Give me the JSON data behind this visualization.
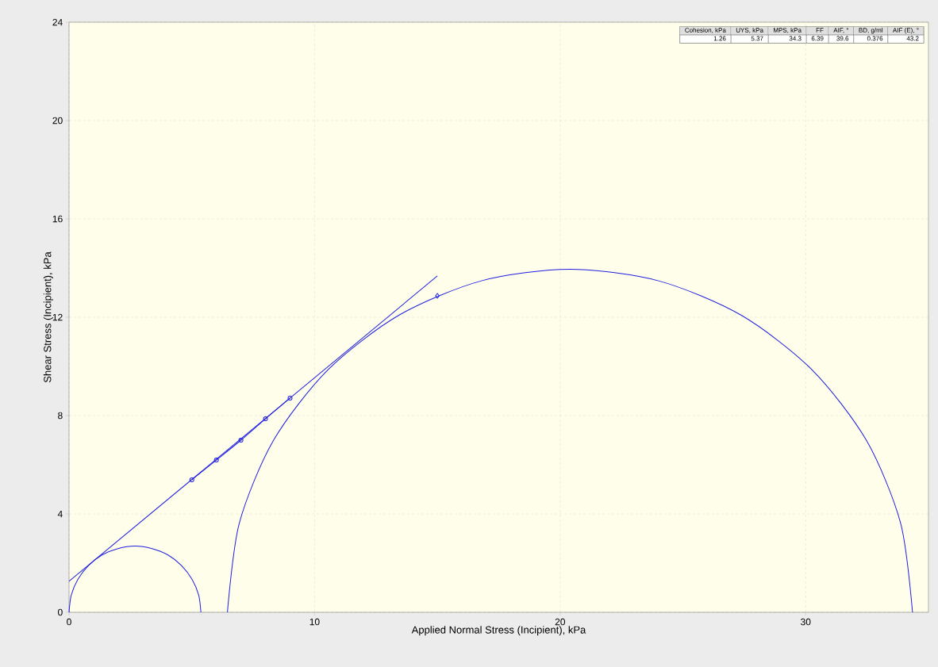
{
  "chart_data": {
    "type": "line",
    "xlabel": "Applied Normal Stress (Incipient), kPa",
    "ylabel": "Shear Stress (Incipient), kPa",
    "xlim": [
      0,
      35
    ],
    "ylim": [
      0,
      24
    ],
    "xticks": [
      0,
      10,
      20,
      30
    ],
    "yticks": [
      0,
      4,
      8,
      12,
      16,
      20,
      24
    ],
    "grid": true,
    "annotations": [
      "Cohesion, kPa",
      "UYS, kPa",
      "MPS, kPa",
      "FF",
      "AIF, °",
      "BD, g/ml",
      "AIF (E), °",
      "1.26",
      "5.37",
      "34.3",
      "6.39",
      "39.6",
      "0.376",
      "43.2"
    ],
    "series": [
      {
        "color": "#1f1fe0",
        "marker": "none",
        "x": [
          0,
          15
        ],
        "values": [
          1.26,
          13.68
        ]
      },
      {
        "color": "#1f1fe0",
        "marker": "circle",
        "x": [
          5,
          6,
          7,
          8,
          9
        ],
        "values": [
          5.39,
          6.19,
          7.0,
          7.87,
          8.71
        ]
      },
      {
        "type": "scatter",
        "color": "#1f1fe0",
        "marker": "diamond",
        "x": [
          15
        ],
        "values": [
          12.87
        ]
      },
      {
        "color": "#1f1fe0",
        "marker": "none",
        "x": [
          0,
          0.09,
          0.36,
          0.79,
          1.34,
          1.99,
          2.69,
          3.38,
          4.03,
          4.58,
          5.01,
          5.28,
          5.37
        ],
        "values": [
          0,
          0.7,
          1.34,
          1.9,
          2.33,
          2.59,
          2.69,
          2.59,
          2.33,
          1.9,
          1.34,
          0.7,
          0
        ]
      },
      {
        "color": "#1f1fe0",
        "marker": "none",
        "x": [
          6.45,
          6.93,
          8.32,
          10.54,
          13.43,
          16.79,
          20.4,
          24.01,
          27.38,
          30.26,
          32.48,
          33.87,
          34.35
        ],
        "values": [
          0,
          3.61,
          6.98,
          9.86,
          12.08,
          13.48,
          13.95,
          13.48,
          12.08,
          9.86,
          6.98,
          3.61,
          0
        ]
      }
    ]
  }
}
